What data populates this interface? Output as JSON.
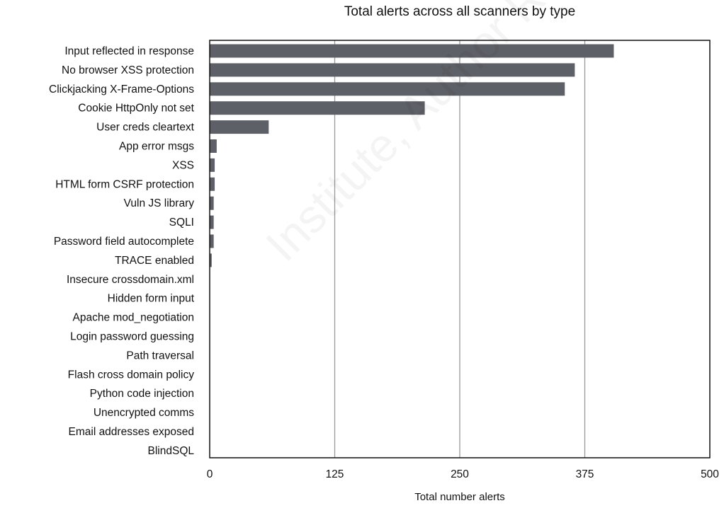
{
  "chart_data": {
    "type": "bar",
    "orientation": "horizontal",
    "title": "Total alerts across all scanners by type",
    "xlabel": "Total number alerts",
    "ylabel": "",
    "xlim": [
      0,
      500
    ],
    "xticks": [
      0,
      125,
      250,
      375,
      500
    ],
    "grid": "vertical",
    "categories": [
      "Input reflected in response",
      "No browser XSS protection",
      "Clickjacking X-Frame-Options",
      "Cookie HttpOnly not set",
      "User creds cleartext",
      "App error msgs",
      "XSS",
      "HTML form CSRF protection",
      "Vuln JS library",
      "SQLI",
      "Password field autocomplete",
      "TRACE enabled",
      "Insecure crossdomain.xml",
      "Hidden form input",
      "Apache mod_negotiation",
      "Login password guessing",
      "Path traversal",
      "Flash cross domain policy",
      "Python code injection",
      "Unencrypted comms",
      "Email addresses exposed",
      "BlindSQL"
    ],
    "values": [
      404,
      365,
      355,
      215,
      59,
      7,
      5,
      5,
      4,
      4,
      4,
      2,
      0,
      0,
      0,
      0,
      0,
      0,
      0,
      0,
      0,
      0
    ],
    "bar_color": "#5d6066",
    "grid_color": "#999999"
  },
  "watermark": "Institute, Author Retains Full"
}
